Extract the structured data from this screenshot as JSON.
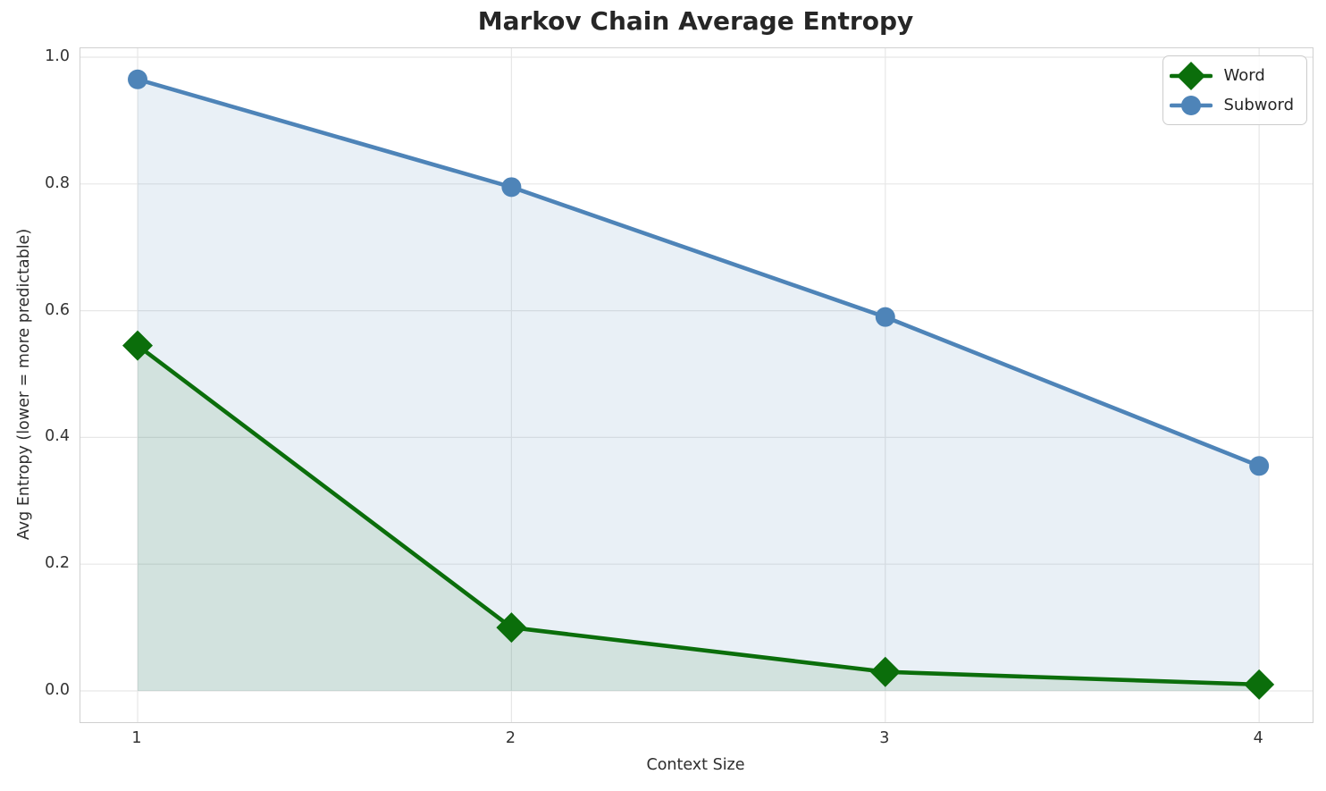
{
  "title": "Markov Chain Average Entropy",
  "chart_data": {
    "type": "line",
    "title": "Markov Chain Average Entropy",
    "xlabel": "Context Size",
    "ylabel": "Avg Entropy (lower = more predictable)",
    "x": [
      1,
      2,
      3,
      4
    ],
    "series": [
      {
        "name": "Word",
        "marker": "diamond",
        "color": "#0b6e0b",
        "fill_alpha": 0.1,
        "values": [
          0.545,
          0.1,
          0.03,
          0.01
        ]
      },
      {
        "name": "Subword",
        "marker": "circle",
        "color": "#4e84b8",
        "fill_alpha": 0.12,
        "values": [
          0.965,
          0.795,
          0.59,
          0.355
        ]
      }
    ],
    "fill_to_zero": true,
    "xlim": [
      0.847,
      4.143
    ],
    "ylim": [
      -0.0494,
      1.0141
    ],
    "xticks": {
      "values": [
        1,
        2,
        3,
        4
      ],
      "labels": [
        "1",
        "2",
        "3",
        "4"
      ]
    },
    "yticks": {
      "values": [
        0.0,
        0.2,
        0.4,
        0.6,
        0.8,
        1.0
      ],
      "labels": [
        "0.0",
        "0.2",
        "0.4",
        "0.6",
        "0.8",
        "1.0"
      ]
    },
    "grid": true,
    "legend_position": "upper right"
  },
  "colors": {
    "grid": "#e7e7e7",
    "spine": "#d0d0d0",
    "tick_text": "#333333",
    "title_text": "#262626"
  },
  "legend": {
    "items": [
      {
        "label": "Word"
      },
      {
        "label": "Subword"
      }
    ]
  }
}
